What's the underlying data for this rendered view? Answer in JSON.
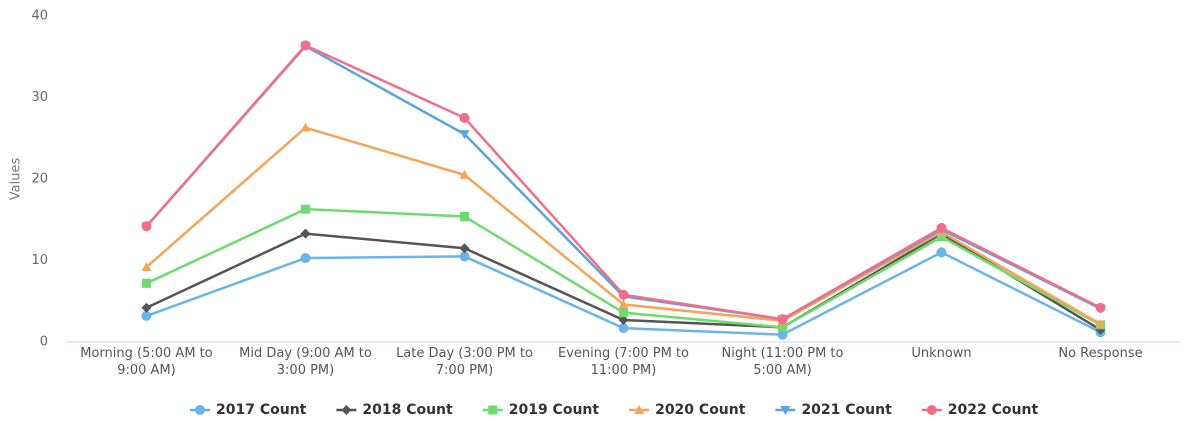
{
  "chart_data": {
    "type": "line",
    "y_label": "Values",
    "categories": [
      "Morning (5:00 AM to 9:00 AM)",
      "Mid Day (9:00 AM to 3:00 PM)",
      "Late Day (3:00 PM to 7:00 PM)",
      "Evening (7:00 PM to 11:00 PM)",
      "Night (11:00 PM to 5:00 AM)",
      "Unknown",
      "No Response"
    ],
    "series": [
      {
        "name": "2017 Count",
        "color": "#6ab4e8",
        "marker": "circle",
        "values": [
          3.2,
          10.3,
          10.5,
          1.7,
          0.9,
          11,
          1.2
        ]
      },
      {
        "name": "2018 Count",
        "color": "#555555",
        "marker": "diamond",
        "values": [
          4.2,
          13.3,
          11.5,
          2.7,
          1.8,
          13.3,
          1.5
        ]
      },
      {
        "name": "2019 Count",
        "color": "#6ddb6d",
        "marker": "square",
        "values": [
          7.2,
          16.3,
          15.4,
          3.6,
          1.8,
          12.9,
          2.1
        ]
      },
      {
        "name": "2020 Count",
        "color": "#f5a55a",
        "marker": "triangle",
        "values": [
          9.2,
          26.3,
          20.5,
          4.6,
          2.6,
          13.5,
          2.2
        ]
      },
      {
        "name": "2021 Count",
        "color": "#5aa3e0",
        "marker": "triangle-down",
        "values": [
          14.2,
          36.3,
          25.5,
          5.6,
          2.8,
          13.8,
          4.1
        ]
      },
      {
        "name": "2022 Count",
        "color": "#f06e8a",
        "marker": "circle",
        "values": [
          14.2,
          36.4,
          27.5,
          5.8,
          2.8,
          14,
          4.2
        ]
      }
    ],
    "ylim": [
      0,
      40
    ],
    "yticks": [
      0,
      10,
      20,
      30,
      40
    ],
    "grid": false,
    "legend": "bottom"
  }
}
